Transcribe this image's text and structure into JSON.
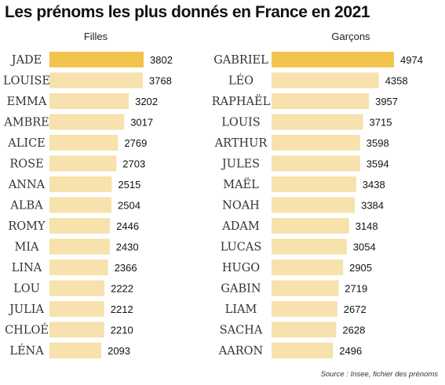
{
  "title": "Les prénoms les plus donnés en France en 2021",
  "source": "Source : Insee, fichier des prénoms",
  "colors": {
    "highlight": "#f2c44e",
    "bar": "#f7e1ad"
  },
  "chart_data": [
    {
      "type": "bar",
      "orientation": "horizontal",
      "title": "Filles",
      "categories": [
        "JADE",
        "LOUISE",
        "EMMA",
        "AMBRE",
        "ALICE",
        "ROSE",
        "ANNA",
        "ALBA",
        "ROMY",
        "MIA",
        "LINA",
        "LOU",
        "JULIA",
        "CHLOÉ",
        "LÉNA"
      ],
      "values": [
        3802,
        3768,
        3202,
        3017,
        2769,
        2703,
        2515,
        2504,
        2446,
        2430,
        2366,
        2222,
        2212,
        2210,
        2093
      ],
      "highlight_index": 0
    },
    {
      "type": "bar",
      "orientation": "horizontal",
      "title": "Garçons",
      "categories": [
        "GABRIEL",
        "LÉO",
        "RAPHAËL",
        "LOUIS",
        "ARTHUR",
        "JULES",
        "MAËL",
        "NOAH",
        "ADAM",
        "LUCAS",
        "HUGO",
        "GABIN",
        "LIAM",
        "SACHA",
        "AARON"
      ],
      "values": [
        4974,
        4358,
        3957,
        3715,
        3598,
        3594,
        3438,
        3384,
        3148,
        3054,
        2905,
        2719,
        2672,
        2628,
        2496
      ],
      "highlight_index": 0
    }
  ]
}
